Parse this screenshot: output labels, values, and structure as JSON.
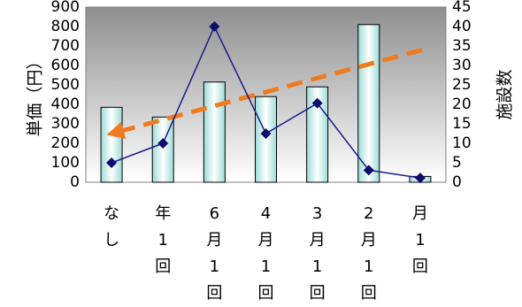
{
  "chart_data": {
    "type": "bar",
    "categories": [
      [
        "な",
        "し"
      ],
      [
        "年",
        "1",
        "回"
      ],
      [
        "6",
        "月",
        "1",
        "回"
      ],
      [
        "4",
        "月",
        "1",
        "回"
      ],
      [
        "3",
        "月",
        "1",
        "回"
      ],
      [
        "2",
        "月",
        "1",
        "回"
      ],
      [
        "月",
        "1",
        "回"
      ]
    ],
    "series": [
      {
        "type": "bar",
        "axis": "left",
        "values": [
          385,
          335,
          515,
          440,
          490,
          810,
          30
        ]
      },
      {
        "type": "line",
        "axis": "right",
        "values": [
          5,
          10,
          40,
          12.5,
          20.3,
          3.1,
          1.1
        ]
      }
    ],
    "trendline": {
      "type": "linear",
      "axis": "left",
      "from": 255,
      "to": 680
    },
    "ylabel_left": "単価（円）",
    "ylabel_right": "施設数",
    "ylim_left": [
      0,
      900
    ],
    "ylim_right": [
      0,
      45
    ],
    "yticks_left": [
      "0",
      "100",
      "200",
      "300",
      "400",
      "500",
      "600",
      "700",
      "800",
      "900"
    ],
    "yticks_right": [
      "0",
      "5",
      "10",
      "15",
      "20",
      "25",
      "30",
      "35",
      "40",
      "45"
    ],
    "colors": {
      "bar_fill_edge": "#9cdcd8",
      "bar_fill_center": "#ffffff",
      "bar_stroke": "#000000",
      "line": "#1a1a8c",
      "marker": "#0d0d6e",
      "trend": "#f07a1e",
      "plot_bg_top": "#8e8e8e",
      "plot_bg_bottom": "#ffffff"
    }
  }
}
